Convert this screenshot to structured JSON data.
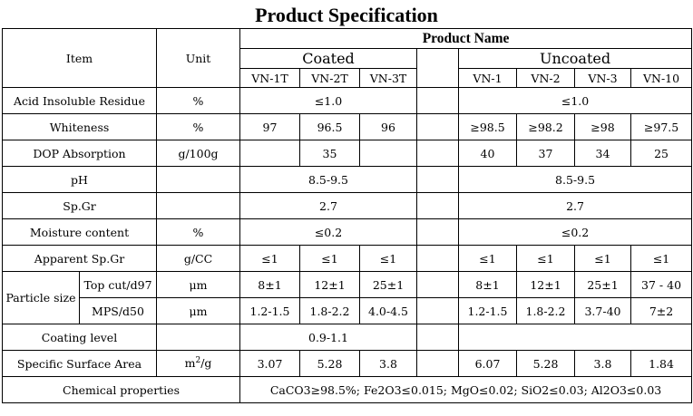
{
  "title": "Product Specification",
  "header": {
    "item": "Item",
    "unit": "Unit",
    "product_name": "Product Name",
    "coated": "Coated",
    "uncoated": "Uncoated",
    "coated_codes": [
      "VN-1T",
      "VN-2T",
      "VN-3T"
    ],
    "uncoated_codes": [
      "VN-1",
      "VN-2",
      "VN-3",
      "VN-10"
    ]
  },
  "rows": {
    "acid": {
      "item": "Acid Insoluble Residue",
      "unit": "%",
      "coated": "≤1.0",
      "uncoated": "≤1.0"
    },
    "whiteness": {
      "item": "Whiteness",
      "unit": "%",
      "coated": [
        "97",
        "96.5",
        "96"
      ],
      "uncoated": [
        "≥98.5",
        "≥98.2",
        "≥98",
        "≥97.5"
      ]
    },
    "dop": {
      "item": "DOP Absorption",
      "unit": "g/100g",
      "coated": "35",
      "uncoated": [
        "40",
        "37",
        "34",
        "25"
      ]
    },
    "ph": {
      "item": "pH",
      "unit": "",
      "coated": "8.5-9.5",
      "uncoated": "8.5-9.5"
    },
    "spgr": {
      "item": "Sp.Gr",
      "unit": "",
      "coated": "2.7",
      "uncoated": "2.7"
    },
    "moisture": {
      "item": "Moisture content",
      "unit": "%",
      "coated": "≤0.2",
      "uncoated": "≤0.2"
    },
    "apparent": {
      "item": "Apparent Sp.Gr",
      "unit": "g/CC",
      "coated": [
        "≤1",
        "≤1",
        "≤1"
      ],
      "uncoated": [
        "≤1",
        "≤1",
        "≤1",
        "≤1"
      ]
    },
    "particle": {
      "item": "Particle size",
      "topcut": {
        "label": "Top cut/d97",
        "unit": "μm",
        "coated": [
          "8±1",
          "12±1",
          "25±1"
        ],
        "uncoated": [
          "8±1",
          "12±1",
          "25±1",
          "37 - 40"
        ]
      },
      "mps": {
        "label": "MPS/d50",
        "unit": "μm",
        "coated": [
          "1.2-1.5",
          "1.8-2.2",
          "4.0-4.5"
        ],
        "uncoated": [
          "1.2-1.5",
          "1.8-2.2",
          "3.7-40",
          "7±2"
        ]
      }
    },
    "coating": {
      "item": "Coating level",
      "unit": "",
      "coated": "0.9-1.1"
    },
    "surface": {
      "item": "Specific Surface Area",
      "unit_base": "m",
      "unit_sup": "2",
      "unit_tail": "/g",
      "coated": [
        "3.07",
        "5.28",
        "3.8"
      ],
      "uncoated": [
        "6.07",
        "5.28",
        "3.8",
        "1.84"
      ]
    },
    "chemical": {
      "item": "Chemical properties",
      "value": "CaCO3≥98.5%; Fe2O3≤0.015; MgO≤0.02; SiO2≤0.03; Al2O3≤0.03"
    }
  }
}
